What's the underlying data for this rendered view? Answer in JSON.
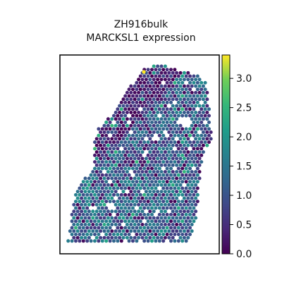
{
  "chart_data": {
    "type": "scatter",
    "title_line1": "ZH916bulk",
    "title_line2": "MARCKSL1 expression",
    "xlabel": "",
    "ylabel": "",
    "colorbar": {
      "colormap": "viridis",
      "range": [
        0.0,
        3.4
      ],
      "ticks": [
        0.0,
        0.5,
        1.0,
        1.5,
        2.0,
        2.5,
        3.0
      ],
      "tick_labels": [
        "0.0",
        "0.5",
        "1.0",
        "1.5",
        "2.0",
        "2.5",
        "3.0"
      ]
    },
    "tissue_shape": "irregular spatial spot map; dense tissue lower-left, upper-right lobe, low-expression band along the central diagonal",
    "approx_spot_count": 900,
    "grid": false,
    "legend": "colorbar right"
  },
  "colors": {
    "background": "#ffffff",
    "axes_border": "#000000",
    "low": "#440154",
    "mid": "#21918c",
    "high": "#fde725"
  }
}
